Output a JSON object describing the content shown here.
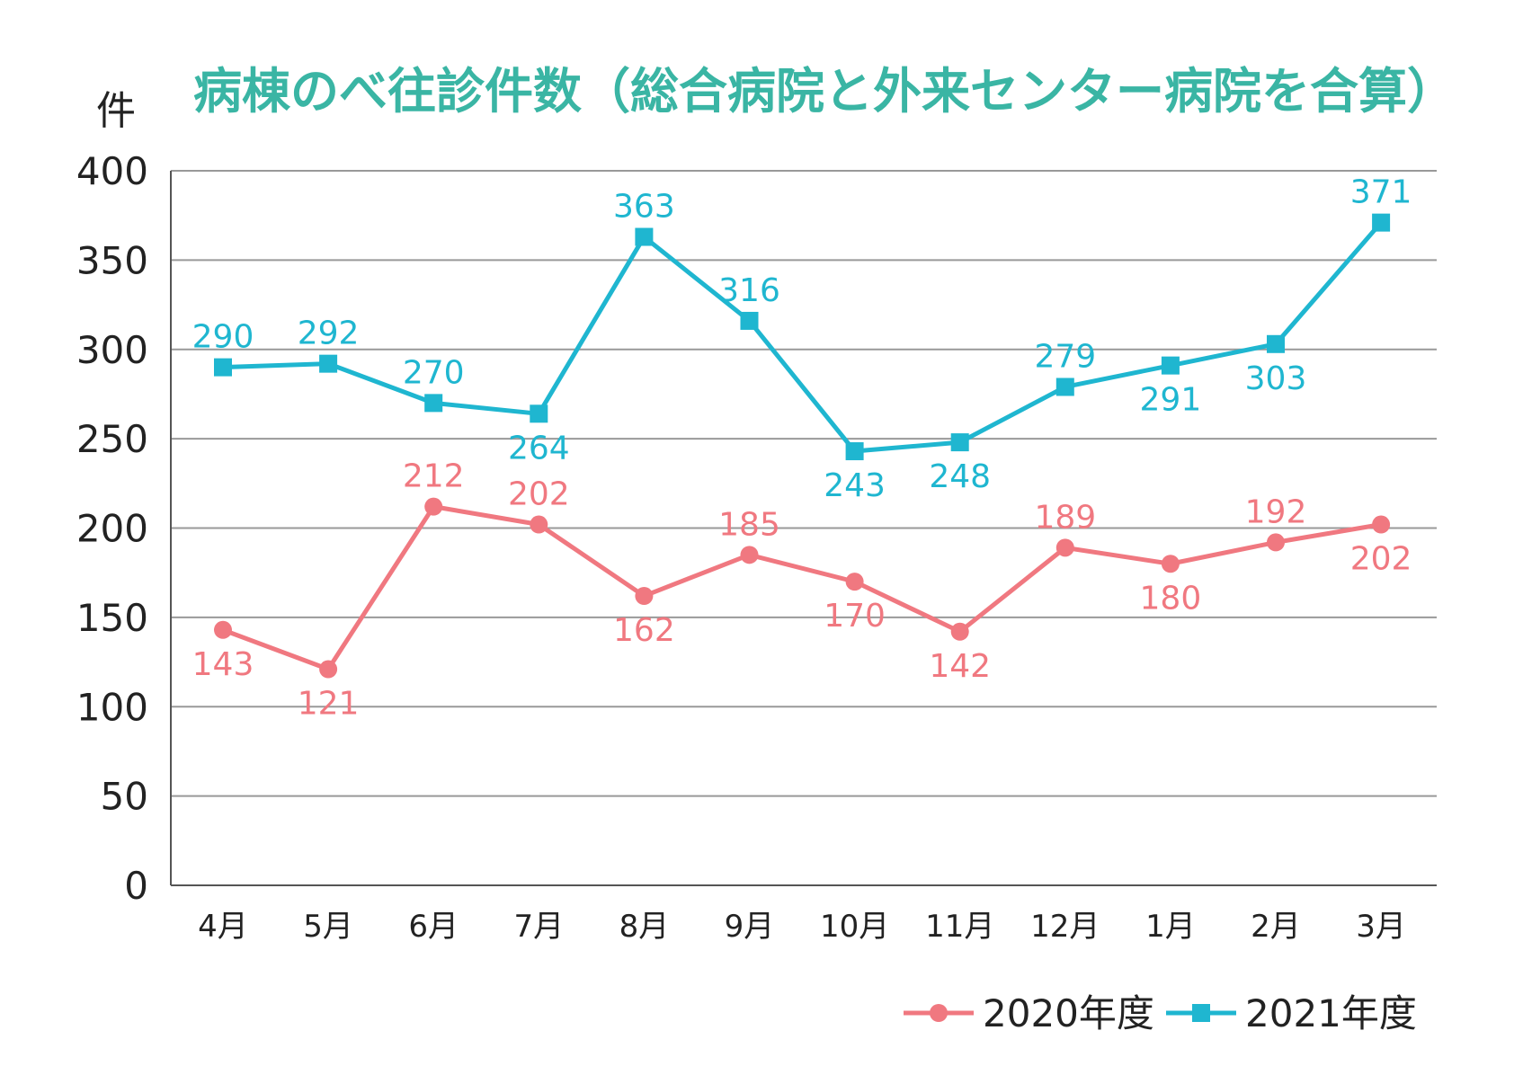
{
  "chart_data": {
    "type": "line",
    "title": "病棟のべ往診件数（総合病院と外来センター病院を合算）",
    "ylabel": "件",
    "xlabel": "",
    "ylim": [
      0,
      400
    ],
    "yticks": [
      0,
      50,
      100,
      150,
      200,
      250,
      300,
      350,
      400
    ],
    "ytick_labels": [
      "0",
      "50",
      "100",
      "150",
      "200",
      "250",
      "300",
      "350",
      "400"
    ],
    "grid": true,
    "legend_position": "bottom-right",
    "categories": [
      "4月",
      "5月",
      "6月",
      "7月",
      "8月",
      "9月",
      "10月",
      "11月",
      "12月",
      "1月",
      "2月",
      "3月"
    ],
    "series": [
      {
        "name": "2020年度",
        "marker": "circle",
        "color": "#f07880",
        "values": [
          143,
          121,
          212,
          202,
          162,
          185,
          170,
          142,
          189,
          180,
          192,
          202
        ],
        "labels": [
          "143",
          "121",
          "212",
          "202",
          "162",
          "185",
          "170",
          "142",
          "189",
          "180",
          "192",
          "202"
        ],
        "label_side": [
          "below",
          "below",
          "above",
          "above",
          "below",
          "above",
          "below",
          "below",
          "above",
          "below",
          "above",
          "below"
        ]
      },
      {
        "name": "2021年度",
        "marker": "square",
        "color": "#1fb6d0",
        "values": [
          290,
          292,
          270,
          264,
          363,
          316,
          243,
          248,
          279,
          291,
          303,
          371
        ],
        "labels": [
          "290",
          "292",
          "270",
          "264",
          "363",
          "316",
          "243",
          "248",
          "279",
          "291",
          "303",
          "371"
        ],
        "label_side": [
          "above",
          "above",
          "above",
          "below",
          "above",
          "above",
          "below",
          "below",
          "above",
          "below",
          "below",
          "above"
        ]
      }
    ]
  },
  "colors": {
    "title": "#3ab5a4",
    "grid": "#999999",
    "axis": "#555555"
  }
}
